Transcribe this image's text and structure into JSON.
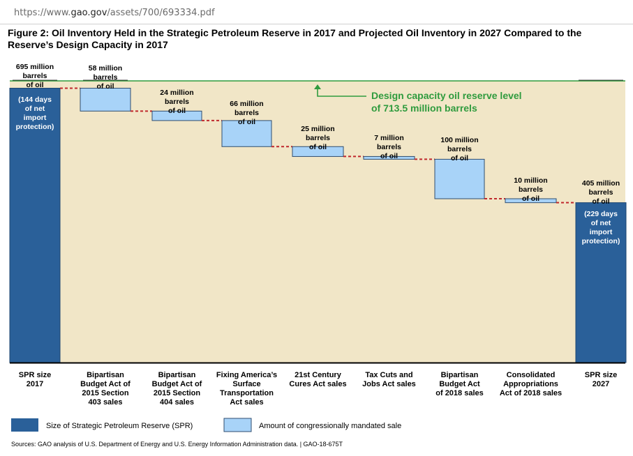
{
  "browser": {
    "url_prefix": "https://www.",
    "url_domain": "gao.gov",
    "url_path": "/assets/700/693334.pdf"
  },
  "figure": {
    "title": "Figure 2: Oil Inventory Held in the Strategic Petroleum Reserve in 2017 and Projected Oil Inventory in 2027 Compared to the Reserve’s Design Capacity in 2017",
    "source": "Sources: GAO analysis of U.S. Department of Energy and U.S. Energy Information Administration data.  |  GAO-18-675T"
  },
  "colors": {
    "spr": "#2a6099",
    "sale": "#a8d3f8",
    "capacity_area": "#f1e6c7",
    "capacity_line": "#2f9b3e",
    "connector": "#c0282d"
  },
  "chart_data": {
    "type": "waterfall",
    "unit": "million barrels",
    "design_capacity": {
      "value": 713.5,
      "label_lines": [
        "Design capacity oil reserve level",
        "of 713.5 million barrels"
      ]
    },
    "bars": [
      {
        "category_lines": [
          "SPR size",
          "2017"
        ],
        "kind": "total",
        "start": 0,
        "end": 695,
        "value_label_lines": [
          "695 million",
          "barrels",
          "of oil"
        ],
        "note_lines": [
          "(144 days",
          "of net",
          "import",
          "protection)"
        ]
      },
      {
        "category_lines": [
          "Bipartisan",
          "Budget Act of",
          "2015 Section",
          "403 sales"
        ],
        "kind": "sale",
        "start": 695,
        "end": 637,
        "value_label_lines": [
          "58 million",
          "barrels",
          "of oil"
        ]
      },
      {
        "category_lines": [
          "Bipartisan",
          "Budget Act of",
          "2015 Section",
          "404 sales"
        ],
        "kind": "sale",
        "start": 637,
        "end": 613,
        "value_label_lines": [
          "24 million",
          "barrels",
          "of oil"
        ]
      },
      {
        "category_lines": [
          "Fixing America’s",
          "Surface",
          "Transportation",
          "Act sales"
        ],
        "kind": "sale",
        "start": 613,
        "end": 547,
        "value_label_lines": [
          "66 million",
          "barrels",
          "of oil"
        ]
      },
      {
        "category_lines": [
          "21st Century",
          "Cures Act sales"
        ],
        "kind": "sale",
        "start": 547,
        "end": 522,
        "value_label_lines": [
          "25 million",
          "barrels",
          "of oil"
        ]
      },
      {
        "category_lines": [
          "Tax Cuts and",
          "Jobs Act sales"
        ],
        "kind": "sale",
        "start": 522,
        "end": 515,
        "value_label_lines": [
          "7 million",
          "barrels",
          "of oil"
        ]
      },
      {
        "category_lines": [
          "Bipartisan",
          "Budget Act",
          "of 2018 sales"
        ],
        "kind": "sale",
        "start": 515,
        "end": 415,
        "value_label_lines": [
          "100 million",
          "barrels",
          "of oil"
        ]
      },
      {
        "category_lines": [
          "Consolidated",
          "Appropriations",
          "Act of 2018 sales"
        ],
        "kind": "sale",
        "start": 415,
        "end": 405,
        "value_label_lines": [
          "10 million",
          "barrels",
          "of oil"
        ]
      },
      {
        "category_lines": [
          "SPR size",
          "2027"
        ],
        "kind": "total",
        "start": 0,
        "end": 405,
        "value_label_lines": [
          "405 million",
          "barrels",
          "of oil"
        ],
        "note_lines": [
          "(229 days",
          "of net",
          "import",
          "protection)"
        ]
      }
    ],
    "legend": [
      {
        "label": "Size of Strategic Petroleum Reserve (SPR)",
        "kind": "total"
      },
      {
        "label": "Amount of congressionally mandated sale",
        "kind": "sale"
      }
    ]
  }
}
